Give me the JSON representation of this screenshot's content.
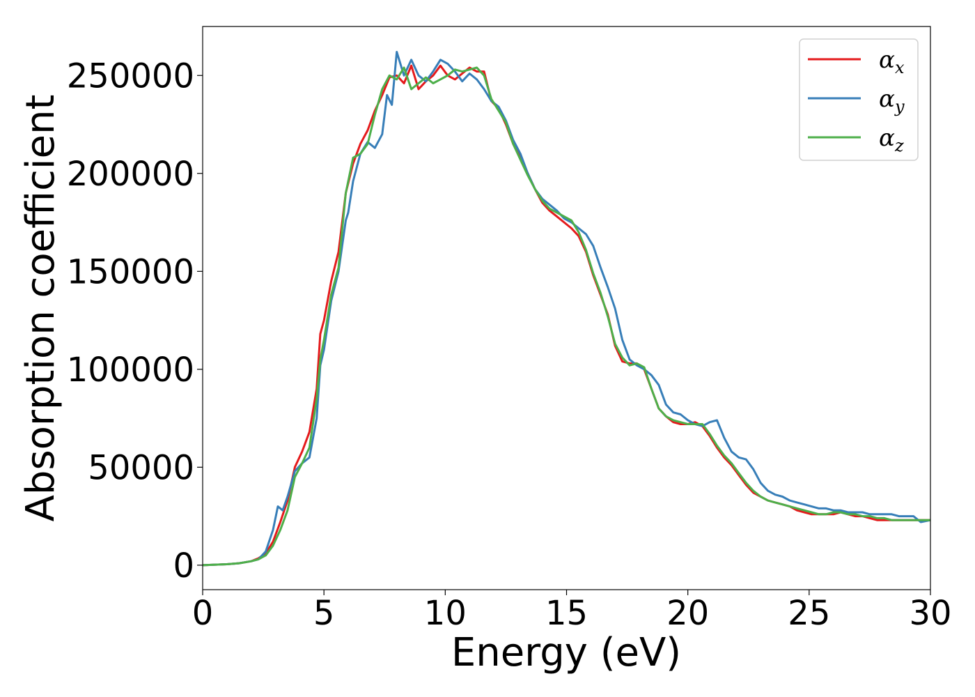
{
  "chart_data": {
    "type": "line",
    "title": "",
    "xlabel": "Energy (eV)",
    "ylabel": "Absorption coefficient",
    "xlim": [
      0,
      30
    ],
    "ylim": [
      -12500,
      275000
    ],
    "xticks": [
      0,
      5,
      10,
      15,
      20,
      25,
      30
    ],
    "yticks": [
      0,
      50000,
      100000,
      150000,
      200000,
      250000
    ],
    "xtick_labels": [
      "0",
      "5",
      "10",
      "15",
      "20",
      "25",
      "30"
    ],
    "ytick_labels": [
      "0",
      "50000",
      "100000",
      "150000",
      "200000",
      "250000"
    ],
    "grid": false,
    "legend_position": "top-right",
    "series": [
      {
        "name": "αx",
        "legend_main": "α",
        "legend_sub": "x",
        "color": "#e41a1c",
        "x": [
          0,
          1,
          1.5,
          2,
          2.3,
          2.6,
          2.9,
          3.2,
          3.5,
          3.8,
          4.1,
          4.4,
          4.7,
          4.85,
          5,
          5.3,
          5.6,
          5.9,
          6.2,
          6.5,
          6.8,
          7.1,
          7.4,
          7.7,
          8,
          8.3,
          8.6,
          8.9,
          9.2,
          9.5,
          9.8,
          10.1,
          10.4,
          10.7,
          11,
          11.3,
          11.6,
          11.9,
          12.2,
          12.5,
          12.8,
          13.1,
          13.4,
          13.7,
          14,
          14.3,
          14.6,
          14.9,
          15.2,
          15.5,
          15.8,
          16.1,
          16.4,
          16.7,
          17,
          17.3,
          17.6,
          17.9,
          18.2,
          18.5,
          18.8,
          19.1,
          19.4,
          19.7,
          20,
          20.3,
          20.6,
          20.9,
          21.2,
          21.5,
          21.8,
          22.1,
          22.4,
          22.7,
          23,
          23.3,
          23.6,
          23.9,
          24.2,
          24.5,
          24.8,
          25.1,
          25.4,
          25.7,
          26,
          26.3,
          26.6,
          26.9,
          27.2,
          27.5,
          27.8,
          28.1,
          28.4,
          28.7,
          29,
          29.3,
          29.6,
          30
        ],
        "y": [
          0,
          500,
          1000,
          2000,
          3500,
          6000,
          12000,
          22000,
          33000,
          50000,
          58000,
          68000,
          90000,
          118000,
          125000,
          145000,
          160000,
          190000,
          205000,
          215000,
          222000,
          232000,
          240000,
          249000,
          250000,
          246000,
          255000,
          243000,
          247000,
          250000,
          255000,
          250000,
          248000,
          251000,
          254000,
          252000,
          252000,
          237000,
          233000,
          225000,
          215000,
          208000,
          200000,
          192000,
          185000,
          181000,
          178000,
          175000,
          172000,
          168000,
          160000,
          148000,
          138000,
          128000,
          112000,
          104000,
          103000,
          103000,
          100000,
          90000,
          80000,
          76000,
          73000,
          72000,
          72000,
          73000,
          71000,
          66000,
          60000,
          55000,
          51000,
          46000,
          41000,
          37000,
          35000,
          33000,
          32000,
          31000,
          30000,
          28000,
          27000,
          26000,
          26000,
          26000,
          26000,
          27000,
          26000,
          25000,
          25000,
          24000,
          23000,
          23000,
          23000,
          23000,
          23000,
          23000,
          23000,
          23000
        ]
      },
      {
        "name": "αy",
        "legend_main": "α",
        "legend_sub": "y",
        "color": "#377eb8",
        "x": [
          0,
          1,
          1.5,
          2,
          2.3,
          2.6,
          2.9,
          3.1,
          3.3,
          3.5,
          3.8,
          4.1,
          4.4,
          4.7,
          4.85,
          5,
          5.3,
          5.6,
          5.9,
          6,
          6.2,
          6.5,
          6.8,
          7.1,
          7.4,
          7.6,
          7.8,
          8,
          8.3,
          8.6,
          8.9,
          9.2,
          9.5,
          9.8,
          10.1,
          10.4,
          10.7,
          11,
          11.3,
          11.6,
          11.9,
          12.2,
          12.5,
          12.8,
          13.1,
          13.4,
          13.7,
          14,
          14.3,
          14.6,
          14.9,
          15.2,
          15.5,
          15.8,
          16.1,
          16.4,
          16.7,
          17,
          17.3,
          17.6,
          17.9,
          18.2,
          18.5,
          18.8,
          19.1,
          19.4,
          19.7,
          20,
          20.3,
          20.6,
          20.9,
          21.2,
          21.5,
          21.8,
          22.1,
          22.4,
          22.7,
          23,
          23.3,
          23.6,
          23.9,
          24.2,
          24.5,
          24.8,
          25.1,
          25.4,
          25.7,
          26,
          26.3,
          26.6,
          26.9,
          27.2,
          27.5,
          27.8,
          28.1,
          28.4,
          28.7,
          29,
          29.3,
          29.6,
          30
        ],
        "y": [
          0,
          500,
          1000,
          2000,
          3000,
          7000,
          18000,
          30000,
          28000,
          35000,
          48000,
          52000,
          55000,
          75000,
          102000,
          110000,
          135000,
          150000,
          176000,
          180000,
          196000,
          210000,
          216000,
          213000,
          220000,
          240000,
          235000,
          262000,
          250000,
          258000,
          250000,
          247000,
          252000,
          258000,
          256000,
          252000,
          247000,
          251000,
          248000,
          243000,
          237000,
          234000,
          227000,
          217000,
          210000,
          200000,
          192000,
          187000,
          184000,
          181000,
          177000,
          175000,
          172000,
          169000,
          163000,
          152000,
          142000,
          131000,
          115000,
          105000,
          102000,
          100000,
          97000,
          92000,
          82000,
          78000,
          77000,
          74000,
          72000,
          71000,
          73000,
          74000,
          65000,
          58000,
          55000,
          54000,
          49000,
          42000,
          38000,
          36000,
          35000,
          33000,
          32000,
          31000,
          30000,
          29000,
          29000,
          28000,
          28000,
          27000,
          27000,
          27000,
          26000,
          26000,
          26000,
          26000,
          25000,
          25000,
          25000,
          22000,
          23000
        ]
      },
      {
        "name": "αz",
        "legend_main": "α",
        "legend_sub": "z",
        "color": "#4daf4a",
        "x": [
          0,
          1,
          1.5,
          2,
          2.3,
          2.6,
          2.9,
          3.2,
          3.5,
          3.8,
          4.1,
          4.4,
          4.7,
          4.85,
          5,
          5.3,
          5.6,
          5.9,
          6.2,
          6.5,
          6.8,
          7.1,
          7.4,
          7.7,
          8,
          8.3,
          8.6,
          8.9,
          9.2,
          9.5,
          9.8,
          10.1,
          10.4,
          10.7,
          11,
          11.3,
          11.6,
          11.9,
          12.2,
          12.5,
          12.8,
          13.1,
          13.4,
          13.7,
          14,
          14.3,
          14.6,
          14.9,
          15.2,
          15.5,
          15.8,
          16.1,
          16.4,
          16.7,
          17,
          17.3,
          17.6,
          17.9,
          18.2,
          18.5,
          18.8,
          19.1,
          19.4,
          19.7,
          20,
          20.3,
          20.6,
          20.9,
          21.2,
          21.5,
          21.8,
          22.1,
          22.4,
          22.7,
          23,
          23.3,
          23.6,
          23.9,
          24.2,
          24.5,
          24.8,
          25.1,
          25.4,
          25.7,
          26,
          26.3,
          26.6,
          26.9,
          27.2,
          27.5,
          27.8,
          28.1,
          28.4,
          28.7,
          29,
          29.3,
          29.6,
          30
        ],
        "y": [
          0,
          500,
          1000,
          2000,
          3000,
          5000,
          10000,
          18000,
          28000,
          45000,
          52000,
          60000,
          85000,
          105000,
          115000,
          138000,
          152000,
          190000,
          208000,
          210000,
          215000,
          230000,
          243000,
          250000,
          248000,
          254000,
          243000,
          246000,
          249000,
          246000,
          248000,
          250000,
          253000,
          252000,
          253000,
          254000,
          250000,
          238000,
          232000,
          226000,
          215000,
          207000,
          199000,
          192000,
          186000,
          182000,
          180000,
          178000,
          176000,
          170000,
          161000,
          149000,
          139000,
          127000,
          113000,
          106000,
          102000,
          103000,
          101000,
          90000,
          80000,
          76000,
          74000,
          73000,
          72000,
          72000,
          72000,
          67000,
          61000,
          56000,
          52000,
          47000,
          42000,
          38000,
          35000,
          33000,
          32000,
          31000,
          30000,
          29000,
          28000,
          27000,
          26000,
          26000,
          27000,
          27000,
          26000,
          26000,
          25000,
          25000,
          24000,
          24000,
          23000,
          23000,
          23000,
          23000,
          23000,
          23000
        ]
      }
    ]
  }
}
